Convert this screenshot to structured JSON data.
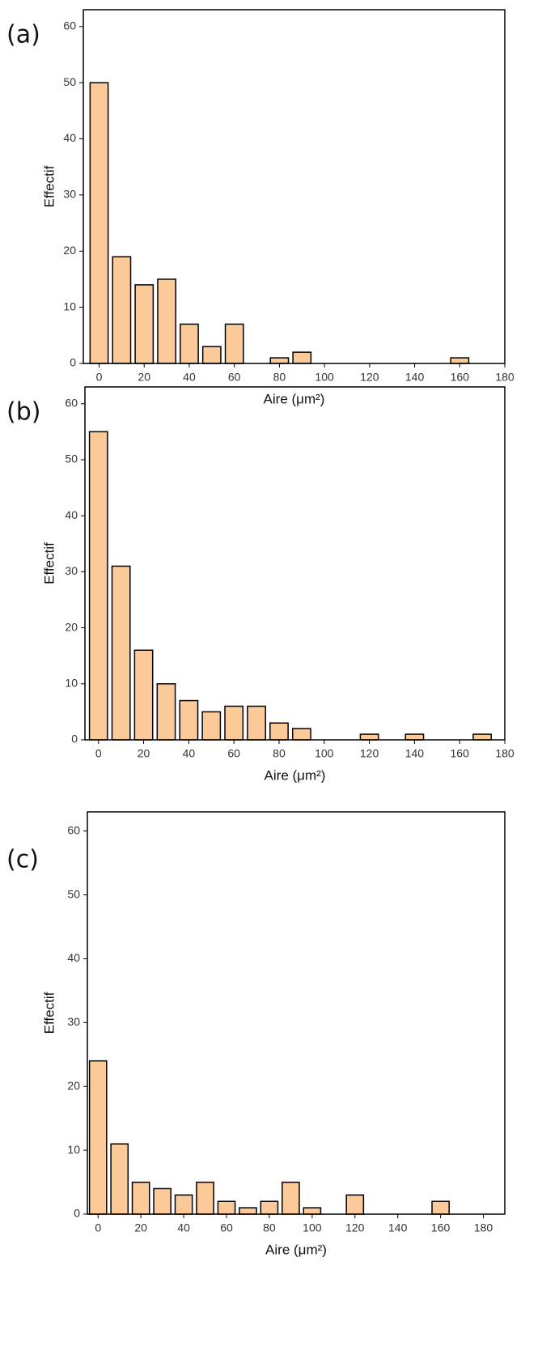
{
  "chart_data": [
    {
      "type": "bar",
      "panel_label": "(a)",
      "x_label": "Aire (μm²)",
      "y_label": "Effectif",
      "color": "#fcc998",
      "x": [
        0,
        10,
        20,
        30,
        40,
        50,
        60,
        70,
        80,
        90,
        100,
        110,
        120,
        130,
        140,
        150,
        160,
        170
      ],
      "values": [
        50,
        19,
        14,
        15,
        7,
        3,
        7,
        0,
        1,
        2,
        0,
        0,
        0,
        0,
        0,
        0,
        1,
        0
      ],
      "xlim": [
        -7,
        180
      ],
      "ylim": [
        0,
        63
      ],
      "xticks": [
        0,
        20,
        40,
        60,
        80,
        100,
        120,
        140,
        160,
        180
      ],
      "yticks": [
        0,
        10,
        20,
        30,
        40,
        50,
        60
      ]
    },
    {
      "type": "bar",
      "panel_label": "(b)",
      "x_label": "Aire (μm²)",
      "y_label": "Effectif",
      "color": "#fcc998",
      "x": [
        0,
        10,
        20,
        30,
        40,
        50,
        60,
        70,
        80,
        90,
        100,
        110,
        120,
        130,
        140,
        150,
        160,
        170
      ],
      "values": [
        55,
        31,
        16,
        10,
        7,
        5,
        6,
        6,
        3,
        2,
        0,
        0,
        1,
        0,
        1,
        0,
        0,
        1
      ],
      "xlim": [
        -6,
        180
      ],
      "ylim": [
        0,
        63
      ],
      "xticks": [
        0,
        20,
        40,
        60,
        80,
        100,
        120,
        140,
        160,
        180
      ],
      "yticks": [
        0,
        10,
        20,
        30,
        40,
        50,
        60
      ]
    },
    {
      "type": "bar",
      "panel_label": "(c)",
      "x_label": "Aire (μm²)",
      "y_label": "Effectif",
      "color": "#fcc998",
      "x": [
        0,
        10,
        20,
        30,
        40,
        50,
        60,
        70,
        80,
        90,
        100,
        110,
        120,
        130,
        140,
        150,
        160,
        170
      ],
      "values": [
        24,
        11,
        5,
        4,
        3,
        5,
        2,
        1,
        2,
        5,
        1,
        0,
        3,
        0,
        0,
        0,
        2,
        0
      ],
      "xlim": [
        -5,
        190
      ],
      "ylim": [
        0,
        63
      ],
      "xticks": [
        0,
        20,
        40,
        60,
        80,
        100,
        120,
        140,
        160,
        180
      ],
      "yticks": [
        0,
        10,
        20,
        30,
        40,
        50,
        60
      ]
    }
  ]
}
